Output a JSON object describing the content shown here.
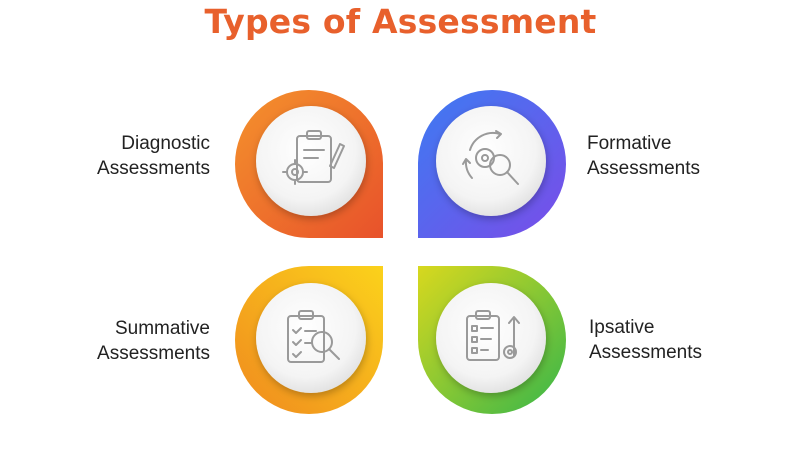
{
  "title": "Types of Assessment",
  "quadrants": [
    {
      "id": "diagnostic",
      "line1": "Diagnostic",
      "line2": "Assessments",
      "icon": "clipboard-gear-icon",
      "gradient": [
        "#f4922c",
        "#e8522b"
      ]
    },
    {
      "id": "formative",
      "line1": "Formative",
      "line2": "Assessments",
      "icon": "gear-magnifier-cycle-icon",
      "gradient": [
        "#3d7bf2",
        "#7a4ce8"
      ]
    },
    {
      "id": "summative",
      "line1": "Summative",
      "line2": "Assessments",
      "icon": "checklist-magnifier-icon",
      "gradient": [
        "#fbd21b",
        "#f08a1e"
      ]
    },
    {
      "id": "ipsative",
      "line1": "Ipsative",
      "line2": "Assessments",
      "icon": "checklist-progress-icon",
      "gradient": [
        "#d8d81e",
        "#36b64a"
      ]
    }
  ]
}
